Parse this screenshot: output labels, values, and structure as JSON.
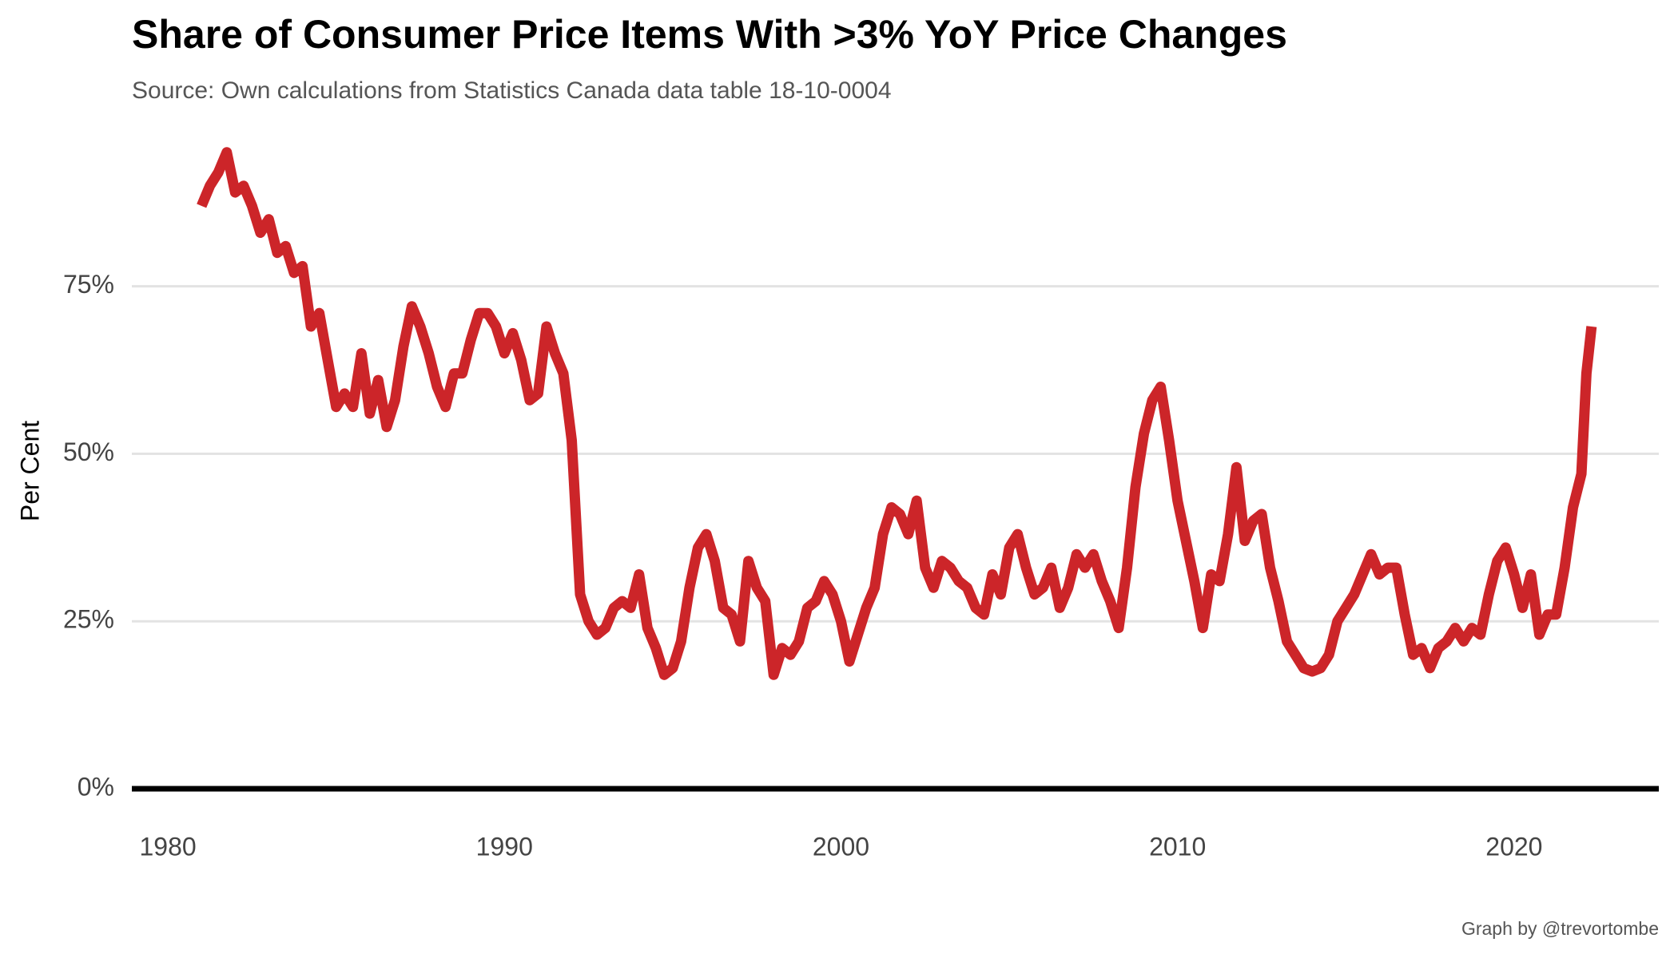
{
  "chart_data": {
    "type": "line",
    "title": "Share of Consumer Price Items With >3% YoY Price Changes",
    "subtitle": "Source: Own calculations from Statistics Canada data table 18-10-0004",
    "y_label": "Per Cent",
    "caption": "Graph by @trevortombe",
    "x": [
      1981.0,
      1981.25,
      1981.5,
      1981.75,
      1982.0,
      1982.25,
      1982.5,
      1982.75,
      1983.0,
      1983.25,
      1983.5,
      1983.75,
      1984.0,
      1984.25,
      1984.5,
      1984.75,
      1985.0,
      1985.25,
      1985.5,
      1985.75,
      1986.0,
      1986.25,
      1986.5,
      1986.75,
      1987.0,
      1987.25,
      1987.5,
      1987.75,
      1988.0,
      1988.25,
      1988.5,
      1988.75,
      1989.0,
      1989.25,
      1989.5,
      1989.75,
      1990.0,
      1990.25,
      1990.5,
      1990.75,
      1991.0,
      1991.25,
      1991.5,
      1991.75,
      1992.0,
      1992.25,
      1992.5,
      1992.75,
      1993.0,
      1993.25,
      1993.5,
      1993.75,
      1994.0,
      1994.25,
      1994.5,
      1994.75,
      1995.0,
      1995.25,
      1995.5,
      1995.75,
      1996.0,
      1996.25,
      1996.5,
      1996.75,
      1997.0,
      1997.25,
      1997.5,
      1997.75,
      1998.0,
      1998.25,
      1998.5,
      1998.75,
      1999.0,
      1999.25,
      1999.5,
      1999.75,
      2000.0,
      2000.25,
      2000.5,
      2000.75,
      2001.0,
      2001.25,
      2001.5,
      2001.75,
      2002.0,
      2002.25,
      2002.5,
      2002.75,
      2003.0,
      2003.25,
      2003.5,
      2003.75,
      2004.0,
      2004.25,
      2004.5,
      2004.75,
      2005.0,
      2005.25,
      2005.5,
      2005.75,
      2006.0,
      2006.25,
      2006.5,
      2006.75,
      2007.0,
      2007.25,
      2007.5,
      2007.75,
      2008.0,
      2008.25,
      2008.5,
      2008.75,
      2009.0,
      2009.25,
      2009.5,
      2009.75,
      2010.0,
      2010.25,
      2010.5,
      2010.75,
      2011.0,
      2011.25,
      2011.5,
      2011.75,
      2012.0,
      2012.25,
      2012.5,
      2012.75,
      2013.0,
      2013.25,
      2013.5,
      2013.75,
      2014.0,
      2014.25,
      2014.5,
      2014.75,
      2015.0,
      2015.25,
      2015.5,
      2015.75,
      2016.0,
      2016.25,
      2016.5,
      2016.75,
      2017.0,
      2017.25,
      2017.5,
      2017.75,
      2018.0,
      2018.25,
      2018.5,
      2018.75,
      2019.0,
      2019.25,
      2019.5,
      2019.75,
      2020.0,
      2020.25,
      2020.5,
      2020.75,
      2021.0,
      2021.25,
      2021.5,
      2021.75,
      2022.0,
      2022.15,
      2022.3
    ],
    "series": [
      {
        "name": "Share",
        "color": "#cc2529",
        "values": [
          87,
          90,
          92,
          95,
          89,
          90,
          87,
          83,
          85,
          80,
          81,
          77,
          78,
          69,
          71,
          64,
          57,
          59,
          57,
          65,
          56,
          61,
          54,
          58,
          66,
          72,
          69,
          65,
          60,
          57,
          62,
          62,
          67,
          71,
          71,
          69,
          65,
          68,
          64,
          58,
          59,
          69,
          65,
          62,
          52,
          29,
          25,
          23,
          24,
          27,
          28,
          27,
          32,
          24,
          21,
          17,
          18,
          22,
          30,
          36,
          38,
          34,
          27,
          26,
          22,
          34,
          30,
          28,
          17,
          21,
          20,
          22,
          27,
          28,
          31,
          29,
          25,
          19,
          23,
          27,
          30,
          38,
          42,
          41,
          38,
          43,
          33,
          30,
          34,
          33,
          31,
          30,
          27,
          26,
          32,
          29,
          36,
          38,
          33,
          29,
          30,
          33,
          27,
          30,
          35,
          33,
          35,
          31,
          28,
          24,
          33,
          45,
          53,
          58,
          60,
          52,
          43,
          37,
          31,
          24,
          32,
          31,
          38,
          48,
          37,
          40,
          41,
          33,
          28,
          22,
          20,
          18,
          17.5,
          18,
          20,
          25,
          27,
          29,
          32,
          35,
          32,
          33,
          33,
          26,
          20,
          21,
          18,
          21,
          22,
          24,
          22,
          24,
          23,
          29,
          34,
          36,
          32,
          27,
          32,
          23,
          26,
          26,
          33,
          42,
          47,
          62,
          69
        ]
      }
    ],
    "xlim": [
      1978.93,
      2024.3
    ],
    "xticks": [
      1980,
      1990,
      2000,
      2010,
      2020
    ],
    "ylim": [
      0,
      97
    ],
    "yticks": [
      {
        "value": 0,
        "label": "0%"
      },
      {
        "value": 25,
        "label": "25%"
      },
      {
        "value": 50,
        "label": "50%"
      },
      {
        "value": 75,
        "label": "75%"
      }
    ],
    "grid": true,
    "zero_line": true
  }
}
